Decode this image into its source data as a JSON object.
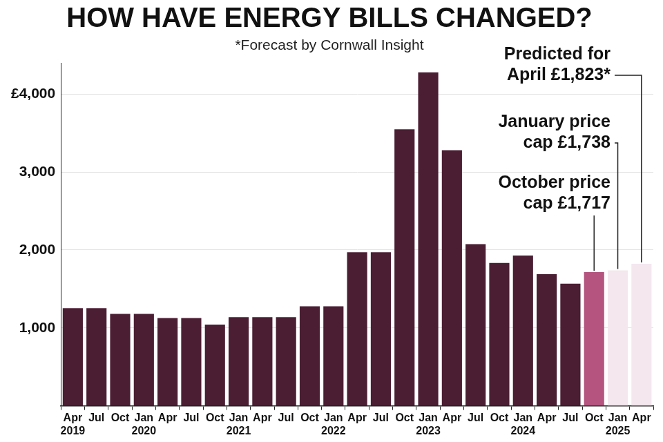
{
  "chart_data": {
    "type": "bar",
    "title": "HOW HAVE ENERGY BILLS CHANGED?",
    "subtitle": "*Forecast by Cornwall Insight",
    "categories": [
      "Apr\n2019",
      "Jul",
      "Oct",
      "Jan\n2020",
      "Apr",
      "Jul",
      "Oct",
      "Jan\n2021",
      "Apr",
      "Jul",
      "Oct",
      "Jan\n2022",
      "Apr",
      "Jul",
      "Oct",
      "Jan\n2023",
      "Apr",
      "Jul",
      "Oct",
      "Jan\n2024",
      "Apr",
      "Jul",
      "Oct",
      "Jan\n2025",
      "Apr"
    ],
    "values": [
      1254,
      1254,
      1179,
      1179,
      1126,
      1126,
      1042,
      1138,
      1138,
      1138,
      1277,
      1277,
      1971,
      1971,
      3549,
      4279,
      3280,
      2074,
      1834,
      1928,
      1690,
      1568,
      1717,
      1738,
      1823
    ],
    "colors": [
      "#4b1e33",
      "#4b1e33",
      "#4b1e33",
      "#4b1e33",
      "#4b1e33",
      "#4b1e33",
      "#4b1e33",
      "#4b1e33",
      "#4b1e33",
      "#4b1e33",
      "#4b1e33",
      "#4b1e33",
      "#4b1e33",
      "#4b1e33",
      "#4b1e33",
      "#4b1e33",
      "#4b1e33",
      "#4b1e33",
      "#4b1e33",
      "#4b1e33",
      "#4b1e33",
      "#4b1e33",
      "#b4547f",
      "#f4e7ee",
      "#f4e7ee"
    ],
    "ylim": [
      0,
      4400
    ],
    "yticks": [
      {
        "value": 1000,
        "label": "1,000"
      },
      {
        "value": 2000,
        "label": "2,000"
      },
      {
        "value": 3000,
        "label": "3,000"
      },
      {
        "value": 4000,
        "label": "£4,000"
      }
    ],
    "grid": true,
    "annotations": [
      "Predicted for\nApril £1,823*",
      "January price\ncap £1,738",
      "October price\ncap £1,717"
    ]
  }
}
